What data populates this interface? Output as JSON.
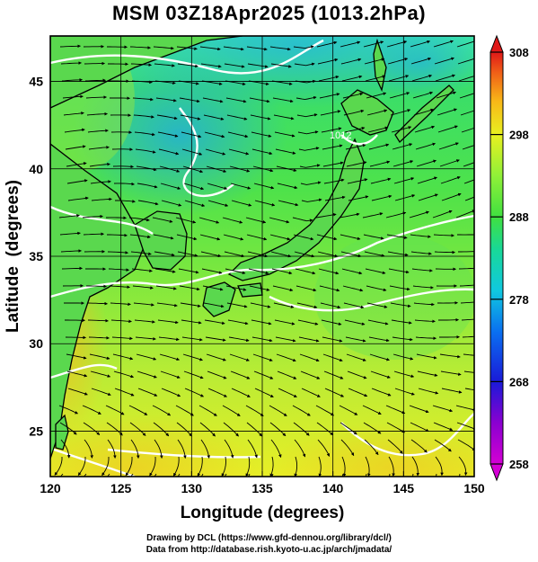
{
  "title": "MSM 03Z18Apr2025 (1013.2hPa)",
  "credits": {
    "line1": "Drawing by DCL (https://www.gfd-dennou.org/library/dcl/)",
    "line2": "Data from http://database.rish.kyoto-u.ac.jp/arch/jmadata/"
  },
  "map": {
    "x_axis_label": "Longitude (degrees)",
    "y_axis_label": "Latitude  (degrees)",
    "lon_range": [
      120,
      150
    ],
    "lat_range": [
      22.4,
      47.6
    ],
    "lon_ticks": [
      "120",
      "125",
      "130",
      "135",
      "140",
      "145",
      "150"
    ],
    "lat_ticks": [
      "25",
      "30",
      "35",
      "40",
      "45"
    ],
    "contour_label": "1012"
  },
  "colorbar": {
    "range": [
      258,
      308
    ],
    "tick_labels": [
      "258",
      "268",
      "278",
      "288",
      "298",
      "308"
    ],
    "colors": [
      "#d400d4",
      "#8a00d0",
      "#1a1ad8",
      "#0a6ff0",
      "#10c8e0",
      "#18d898",
      "#40e040",
      "#90f038",
      "#e8f020",
      "#f8b818",
      "#f06018",
      "#e01818"
    ]
  }
}
